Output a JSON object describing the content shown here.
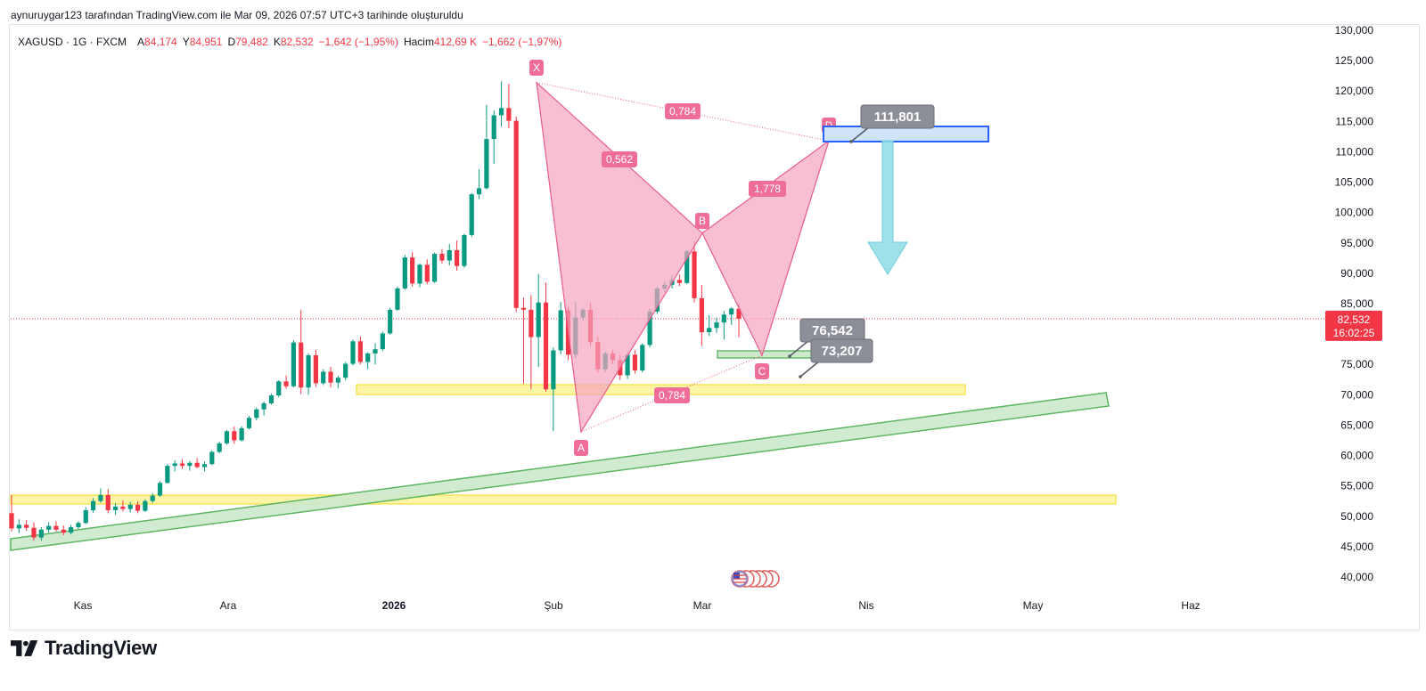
{
  "header": {
    "caption": "aynuruygar123 tarafından TradingView.com ile Mar 09, 2026 07:57 UTC+3 tarihinde oluşturuldu"
  },
  "legend": {
    "symbol": "XAGUSD · 1G · FXCM",
    "open_label": "A",
    "open": "84,174",
    "high_label": "Y",
    "high": "84,951",
    "low_label": "D",
    "low": "79,482",
    "close_label": "K",
    "close": "82,532",
    "change": "−1,642 (−1,95%)",
    "volume_label": "Hacim",
    "volume": "412,69 K",
    "volume_change": "−1,662 (−1,97%)"
  },
  "price_axis": {
    "ticks": [
      "130,000",
      "125,000",
      "120,000",
      "115,000",
      "110,000",
      "105,000",
      "100,000",
      "95,000",
      "90,000",
      "85,000",
      "80,000",
      "75,000",
      "70,000",
      "65,000",
      "60,000",
      "55,000",
      "50,000",
      "45,000",
      "40,000"
    ],
    "current_price": "82,532",
    "countdown": "16:02:25"
  },
  "time_axis": {
    "labels": [
      {
        "text": "Kas",
        "bold": false
      },
      {
        "text": "Ara",
        "bold": false
      },
      {
        "text": "2026",
        "bold": true
      },
      {
        "text": "Şub",
        "bold": false
      },
      {
        "text": "Mar",
        "bold": false
      },
      {
        "text": "Nis",
        "bold": false
      },
      {
        "text": "May",
        "bold": false
      },
      {
        "text": "Haz",
        "bold": false
      }
    ]
  },
  "colors": {
    "up": "#089981",
    "down": "#f23645",
    "pattern_fill": "#f5a3bf",
    "pattern_line": "#e85d8c",
    "yellow_zone": "#fff59d",
    "green_zone": "#cde9cd",
    "blue_zone": "#cfe4f8",
    "blue_border": "#2962ff",
    "arrow": "#8fdbe6",
    "callout": "#8d8f98"
  },
  "harmonic": {
    "points": [
      {
        "label": "X",
        "price": 121.4
      },
      {
        "label": "A",
        "price": 63.9
      },
      {
        "label": "B",
        "price": 96.6
      },
      {
        "label": "C",
        "price": 76.5
      },
      {
        "label": "D",
        "price": 111.8
      }
    ],
    "ratios": {
      "xb": "0,562",
      "ac": "0,784",
      "bd": "1,778",
      "xd": "0,784"
    }
  },
  "callouts": [
    "111,801",
    "76,542",
    "73,207"
  ],
  "brand": {
    "name": "TradingView"
  },
  "chart_data": {
    "type": "candlestick",
    "symbol": "XAGUSD",
    "interval": "1G",
    "ylim": [
      40,
      130
    ],
    "candles": [
      {
        "o": 50.5,
        "h": 53.5,
        "l": 47.5,
        "c": 48.0
      },
      {
        "o": 48.0,
        "h": 49.5,
        "l": 47.2,
        "c": 48.6
      },
      {
        "o": 48.6,
        "h": 49.4,
        "l": 47.6,
        "c": 48.1
      },
      {
        "o": 48.1,
        "h": 49.0,
        "l": 46.0,
        "c": 46.5
      },
      {
        "o": 46.5,
        "h": 48.2,
        "l": 46.0,
        "c": 47.8
      },
      {
        "o": 47.8,
        "h": 49.0,
        "l": 47.3,
        "c": 48.4
      },
      {
        "o": 48.4,
        "h": 49.2,
        "l": 47.5,
        "c": 47.8
      },
      {
        "o": 47.8,
        "h": 48.5,
        "l": 46.9,
        "c": 47.3
      },
      {
        "o": 47.3,
        "h": 48.6,
        "l": 47.0,
        "c": 48.2
      },
      {
        "o": 48.2,
        "h": 49.2,
        "l": 47.9,
        "c": 48.9
      },
      {
        "o": 48.9,
        "h": 51.5,
        "l": 48.7,
        "c": 51.0
      },
      {
        "o": 51.0,
        "h": 53.0,
        "l": 50.6,
        "c": 52.5
      },
      {
        "o": 52.5,
        "h": 54.6,
        "l": 52.2,
        "c": 53.5
      },
      {
        "o": 53.5,
        "h": 54.5,
        "l": 50.5,
        "c": 51.0
      },
      {
        "o": 51.0,
        "h": 52.2,
        "l": 50.2,
        "c": 51.6
      },
      {
        "o": 51.6,
        "h": 52.6,
        "l": 50.8,
        "c": 51.2
      },
      {
        "o": 51.2,
        "h": 52.4,
        "l": 50.6,
        "c": 51.9
      },
      {
        "o": 51.9,
        "h": 52.5,
        "l": 50.5,
        "c": 50.9
      },
      {
        "o": 50.9,
        "h": 52.8,
        "l": 50.7,
        "c": 52.5
      },
      {
        "o": 52.5,
        "h": 53.8,
        "l": 52.2,
        "c": 53.4
      },
      {
        "o": 53.4,
        "h": 55.8,
        "l": 53.2,
        "c": 55.5
      },
      {
        "o": 55.5,
        "h": 58.6,
        "l": 55.4,
        "c": 58.3
      },
      {
        "o": 58.3,
        "h": 59.2,
        "l": 57.4,
        "c": 58.7
      },
      {
        "o": 58.7,
        "h": 59.4,
        "l": 57.8,
        "c": 58.3
      },
      {
        "o": 58.3,
        "h": 59.1,
        "l": 57.5,
        "c": 58.8
      },
      {
        "o": 58.8,
        "h": 59.6,
        "l": 57.9,
        "c": 58.1
      },
      {
        "o": 58.1,
        "h": 59.0,
        "l": 57.4,
        "c": 58.6
      },
      {
        "o": 58.6,
        "h": 60.8,
        "l": 58.4,
        "c": 60.6
      },
      {
        "o": 60.6,
        "h": 62.3,
        "l": 60.4,
        "c": 62.0
      },
      {
        "o": 62.0,
        "h": 64.2,
        "l": 61.8,
        "c": 64.0
      },
      {
        "o": 64.0,
        "h": 64.8,
        "l": 61.9,
        "c": 62.5
      },
      {
        "o": 62.5,
        "h": 64.8,
        "l": 62.3,
        "c": 64.5
      },
      {
        "o": 64.5,
        "h": 66.5,
        "l": 64.3,
        "c": 66.2
      },
      {
        "o": 66.2,
        "h": 67.9,
        "l": 65.8,
        "c": 67.6
      },
      {
        "o": 67.6,
        "h": 68.9,
        "l": 66.6,
        "c": 68.6
      },
      {
        "o": 68.6,
        "h": 70.2,
        "l": 68.4,
        "c": 69.9
      },
      {
        "o": 69.9,
        "h": 72.4,
        "l": 69.6,
        "c": 72.2
      },
      {
        "o": 72.2,
        "h": 73.2,
        "l": 71.0,
        "c": 71.4
      },
      {
        "o": 71.4,
        "h": 79.0,
        "l": 71.2,
        "c": 78.6
      },
      {
        "o": 78.6,
        "h": 84.0,
        "l": 70.1,
        "c": 71.2
      },
      {
        "o": 71.2,
        "h": 76.8,
        "l": 70.0,
        "c": 76.5
      },
      {
        "o": 76.5,
        "h": 77.4,
        "l": 71.3,
        "c": 71.9
      },
      {
        "o": 71.9,
        "h": 74.2,
        "l": 71.6,
        "c": 73.8
      },
      {
        "o": 73.8,
        "h": 74.6,
        "l": 71.2,
        "c": 72.0
      },
      {
        "o": 72.0,
        "h": 73.1,
        "l": 71.1,
        "c": 72.8
      },
      {
        "o": 72.8,
        "h": 75.4,
        "l": 72.4,
        "c": 75.1
      },
      {
        "o": 75.1,
        "h": 79.1,
        "l": 74.8,
        "c": 78.8
      },
      {
        "o": 78.8,
        "h": 79.6,
        "l": 75.0,
        "c": 75.4
      },
      {
        "o": 75.4,
        "h": 77.0,
        "l": 74.2,
        "c": 76.8
      },
      {
        "o": 76.8,
        "h": 78.5,
        "l": 75.0,
        "c": 77.5
      },
      {
        "o": 77.5,
        "h": 80.4,
        "l": 77.2,
        "c": 80.1
      },
      {
        "o": 80.1,
        "h": 84.3,
        "l": 79.9,
        "c": 84.0
      },
      {
        "o": 84.0,
        "h": 87.8,
        "l": 83.8,
        "c": 87.5
      },
      {
        "o": 87.5,
        "h": 93.0,
        "l": 87.3,
        "c": 92.6
      },
      {
        "o": 92.6,
        "h": 93.5,
        "l": 87.8,
        "c": 88.3
      },
      {
        "o": 88.3,
        "h": 91.6,
        "l": 87.7,
        "c": 91.4
      },
      {
        "o": 91.4,
        "h": 92.3,
        "l": 88.2,
        "c": 88.6
      },
      {
        "o": 88.6,
        "h": 93.4,
        "l": 88.4,
        "c": 93.2
      },
      {
        "o": 93.2,
        "h": 94.0,
        "l": 91.6,
        "c": 92.1
      },
      {
        "o": 92.1,
        "h": 94.8,
        "l": 91.3,
        "c": 93.8
      },
      {
        "o": 93.8,
        "h": 95.4,
        "l": 90.4,
        "c": 91.2
      },
      {
        "o": 91.2,
        "h": 96.5,
        "l": 90.9,
        "c": 96.3
      },
      {
        "o": 96.3,
        "h": 103.2,
        "l": 96.0,
        "c": 103.0
      },
      {
        "o": 103.0,
        "h": 107.1,
        "l": 102.2,
        "c": 104.0
      },
      {
        "o": 104.0,
        "h": 117.7,
        "l": 103.8,
        "c": 112.1
      },
      {
        "o": 112.1,
        "h": 116.8,
        "l": 108.0,
        "c": 116.0
      },
      {
        "o": 116.0,
        "h": 121.6,
        "l": 114.2,
        "c": 117.2
      },
      {
        "o": 117.2,
        "h": 121.2,
        "l": 113.9,
        "c": 115.1
      },
      {
        "o": 115.1,
        "h": 115.8,
        "l": 83.6,
        "c": 84.3
      },
      {
        "o": 84.3,
        "h": 86.0,
        "l": 71.8,
        "c": 84.0
      },
      {
        "o": 84.0,
        "h": 86.4,
        "l": 70.9,
        "c": 79.5
      },
      {
        "o": 79.5,
        "h": 89.9,
        "l": 74.6,
        "c": 85.2
      },
      {
        "o": 85.2,
        "h": 88.5,
        "l": 70.5,
        "c": 70.9
      },
      {
        "o": 70.9,
        "h": 77.8,
        "l": 64.0,
        "c": 77.3
      },
      {
        "o": 77.3,
        "h": 85.3,
        "l": 76.7,
        "c": 83.9
      },
      {
        "o": 83.9,
        "h": 84.5,
        "l": 75.7,
        "c": 76.6
      },
      {
        "o": 76.6,
        "h": 85.3,
        "l": 76.0,
        "c": 82.7
      },
      {
        "o": 82.7,
        "h": 84.2,
        "l": 82.2,
        "c": 84.0
      },
      {
        "o": 84.0,
        "h": 85.1,
        "l": 78.0,
        "c": 78.7
      },
      {
        "o": 78.7,
        "h": 79.6,
        "l": 73.6,
        "c": 74.2
      },
      {
        "o": 74.2,
        "h": 77.1,
        "l": 73.7,
        "c": 76.8
      },
      {
        "o": 76.8,
        "h": 77.4,
        "l": 75.1,
        "c": 75.7
      },
      {
        "o": 75.7,
        "h": 76.6,
        "l": 72.4,
        "c": 73.2
      },
      {
        "o": 73.2,
        "h": 77.0,
        "l": 72.6,
        "c": 76.6
      },
      {
        "o": 76.6,
        "h": 77.4,
        "l": 73.5,
        "c": 74.0
      },
      {
        "o": 74.0,
        "h": 78.5,
        "l": 73.7,
        "c": 78.2
      },
      {
        "o": 78.2,
        "h": 84.2,
        "l": 77.8,
        "c": 83.7
      },
      {
        "o": 83.7,
        "h": 87.8,
        "l": 83.3,
        "c": 87.5
      },
      {
        "o": 87.5,
        "h": 88.6,
        "l": 86.9,
        "c": 88.1
      },
      {
        "o": 88.1,
        "h": 89.7,
        "l": 87.5,
        "c": 88.9
      },
      {
        "o": 88.9,
        "h": 89.8,
        "l": 87.9,
        "c": 88.4
      },
      {
        "o": 88.4,
        "h": 93.8,
        "l": 88.2,
        "c": 93.6
      },
      {
        "o": 93.6,
        "h": 95.3,
        "l": 85.2,
        "c": 85.9
      },
      {
        "o": 85.9,
        "h": 88.1,
        "l": 78.0,
        "c": 80.3
      },
      {
        "o": 80.3,
        "h": 83.1,
        "l": 79.7,
        "c": 81.0
      },
      {
        "o": 81.0,
        "h": 82.7,
        "l": 80.2,
        "c": 81.9
      },
      {
        "o": 81.9,
        "h": 83.8,
        "l": 79.1,
        "c": 83.2
      },
      {
        "o": 83.2,
        "h": 84.4,
        "l": 81.5,
        "c": 84.2
      },
      {
        "o": 84.174,
        "h": 84.951,
        "l": 79.482,
        "c": 82.532
      }
    ]
  }
}
